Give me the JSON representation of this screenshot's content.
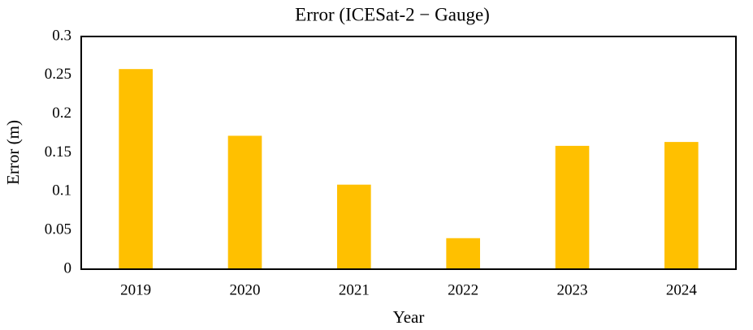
{
  "chart_data": {
    "type": "bar",
    "title": "Error (ICESat-2 − Gauge)",
    "x_label": "Year",
    "y_label": "Error (m)",
    "categories": [
      "2019",
      "2020",
      "2021",
      "2022",
      "2023",
      "2024"
    ],
    "values": [
      0.258,
      0.172,
      0.109,
      0.04,
      0.159,
      0.164
    ],
    "color": "#ffc000",
    "ylim": [
      0,
      0.3
    ],
    "yticks": [
      0,
      0.05,
      0.1,
      0.15,
      0.2,
      0.25,
      0.3
    ],
    "grid": false
  }
}
